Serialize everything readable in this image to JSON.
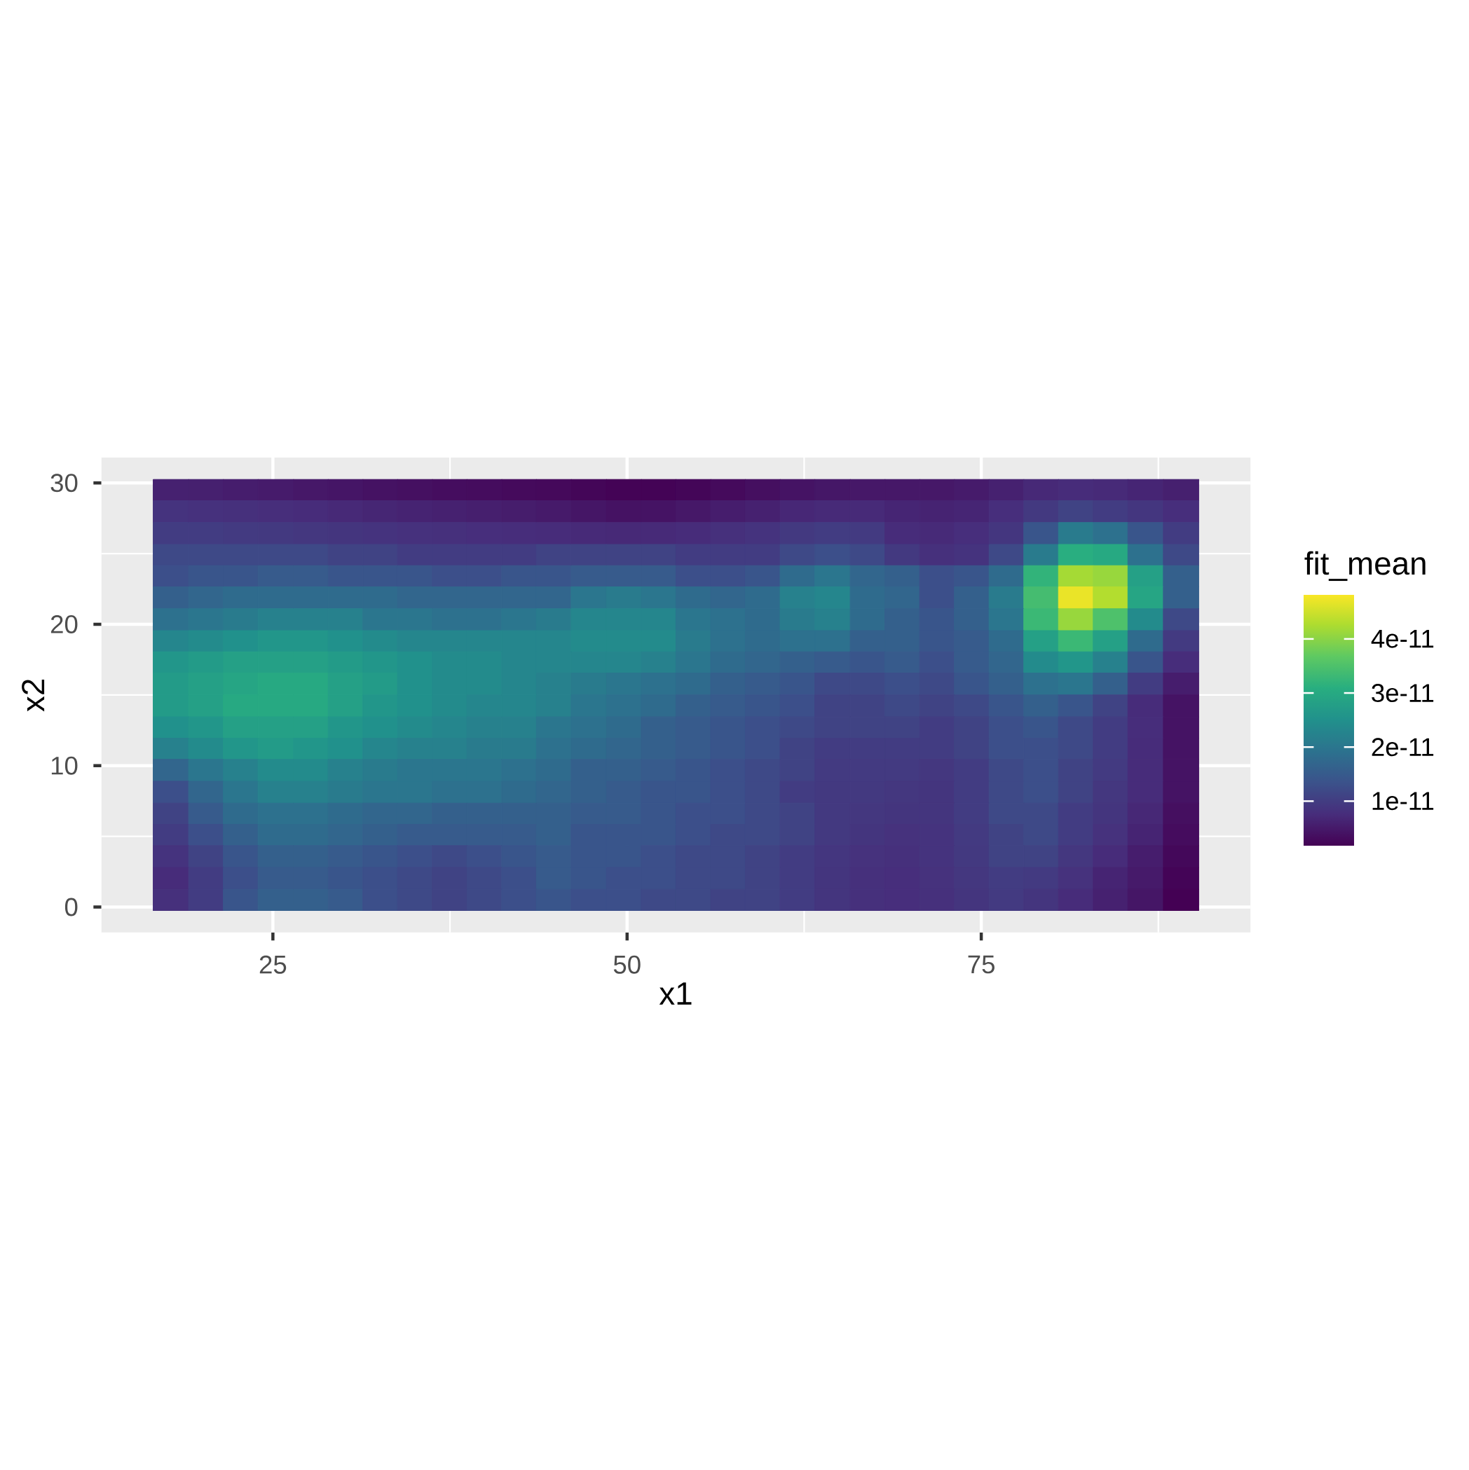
{
  "chart_data": {
    "type": "heatmap",
    "xlabel": "x1",
    "ylabel": "x2",
    "clabel": "fit_mean",
    "xlim": [
      12.9,
      94.0
    ],
    "ylim": [
      -1.8,
      31.8
    ],
    "xticks": [
      25,
      50,
      75
    ],
    "yticks": [
      0,
      10,
      20,
      30
    ],
    "grid": true,
    "clim": [
      1.75e-12,
      4.84e-11
    ],
    "cticks": [
      {
        "value": 1e-11,
        "label": "1e-11"
      },
      {
        "value": 2e-11,
        "label": "2e-11"
      },
      {
        "value": 3e-11,
        "label": "3e-11"
      },
      {
        "value": 4e-11,
        "label": "4e-11"
      }
    ],
    "x": [
      17.8,
      20.3,
      22.7,
      25.2,
      27.7,
      30.1,
      32.6,
      35.0,
      37.5,
      39.9,
      42.4,
      44.8,
      47.3,
      49.8,
      52.2,
      54.7,
      57.1,
      59.6,
      62.0,
      64.5,
      67.0,
      69.4,
      71.9,
      74.3,
      76.8,
      79.2,
      81.7,
      84.1,
      86.6,
      89.1
    ],
    "y": [
      29.5,
      28.0,
      26.4,
      24.9,
      23.4,
      21.9,
      20.3,
      18.8,
      17.3,
      15.8,
      14.2,
      12.7,
      11.2,
      9.7,
      8.1,
      6.6,
      5.1,
      3.6,
      2.0,
      0.5
    ],
    "cells": [
      [
        6e-12,
        5.8e-12,
        5.5e-12,
        5.2e-12,
        4.8e-12,
        4.4e-12,
        4e-12,
        3.7e-12,
        3.4e-12,
        3.2e-12,
        3e-12,
        2.8e-12,
        2.4e-12,
        2e-12,
        2e-12,
        2.4e-12,
        3e-12,
        3.6e-12,
        4.2e-12,
        4.6e-12,
        4.8e-12,
        4.8e-12,
        4.8e-12,
        5.2e-12,
        6e-12,
        7e-12,
        7.5e-12,
        7.2e-12,
        6.5e-12,
        5.8e-12
      ],
      [
        8.5e-12,
        8.2e-12,
        8e-12,
        7.7e-12,
        7.4e-12,
        7e-12,
        6.6e-12,
        6.2e-12,
        6e-12,
        5.7e-12,
        5.4e-12,
        5e-12,
        4.5e-12,
        4e-12,
        4.2e-12,
        4.8e-12,
        5.5e-12,
        6e-12,
        6.8e-12,
        7.2e-12,
        7.2e-12,
        6.5e-12,
        6.2e-12,
        6.5e-12,
        7.8e-12,
        9.5e-12,
        1.1e-11,
        1e-11,
        9e-12,
        7.8e-12
      ],
      [
        1e-11,
        1e-11,
        9.7e-12,
        9.5e-12,
        9.2e-12,
        8.8e-12,
        8.5e-12,
        8.2e-12,
        8e-12,
        7.8e-12,
        7.6e-12,
        7.4e-12,
        7.2e-12,
        7e-12,
        7.2e-12,
        7.5e-12,
        8e-12,
        8.5e-12,
        9.5e-12,
        1e-11,
        9.7e-12,
        7.5e-12,
        7.2e-12,
        7.8e-12,
        9e-12,
        1.4e-11,
        2.1e-11,
        1.9e-11,
        1.4e-11,
        1e-11
      ],
      [
        1.2e-11,
        1.2e-11,
        1.2e-11,
        1.2e-11,
        1.2e-11,
        1.1e-11,
        1.1e-11,
        1e-11,
        1e-11,
        1e-11,
        1e-11,
        1.1e-11,
        1.1e-11,
        1.1e-11,
        1.1e-11,
        1e-11,
        1e-11,
        1e-11,
        1.2e-11,
        1.3e-11,
        1.2e-11,
        9.5e-12,
        8e-12,
        8.5e-12,
        1.2e-11,
        2.1e-11,
        3.1e-11,
        3e-11,
        1.9e-11,
        1.2e-11
      ],
      [
        1.3e-11,
        1.4e-11,
        1.4e-11,
        1.5e-11,
        1.5e-11,
        1.4e-11,
        1.4e-11,
        1.4e-11,
        1.3e-11,
        1.3e-11,
        1.4e-11,
        1.4e-11,
        1.5e-11,
        1.5e-11,
        1.5e-11,
        1.3e-11,
        1.3e-11,
        1.4e-11,
        1.8e-11,
        2e-11,
        1.7e-11,
        1.6e-11,
        1.3e-11,
        1.4e-11,
        1.8e-11,
        3.2e-11,
        4.2e-11,
        4.1e-11,
        2.8e-11,
        1.6e-11
      ],
      [
        1.6e-11,
        1.7e-11,
        1.8e-11,
        1.8e-11,
        1.8e-11,
        1.8e-11,
        1.8e-11,
        1.7e-11,
        1.7e-11,
        1.7e-11,
        1.7e-11,
        1.7e-11,
        2e-11,
        2.1e-11,
        2e-11,
        1.8e-11,
        1.7e-11,
        1.8e-11,
        2.2e-11,
        2.3e-11,
        1.8e-11,
        1.7e-11,
        1.3e-11,
        1.6e-11,
        2.1e-11,
        3.4e-11,
        4.7e-11,
        4.3e-11,
        2.9e-11,
        1.6e-11
      ],
      [
        1.9e-11,
        2e-11,
        2.1e-11,
        2.2e-11,
        2.2e-11,
        2.2e-11,
        2e-11,
        2e-11,
        1.9e-11,
        1.9e-11,
        2e-11,
        2.1e-11,
        2.3e-11,
        2.3e-11,
        2.3e-11,
        2e-11,
        1.9e-11,
        1.8e-11,
        2.1e-11,
        2.2e-11,
        1.8e-11,
        1.6e-11,
        1.4e-11,
        1.6e-11,
        2e-11,
        3.3e-11,
        4.1e-11,
        3.5e-11,
        2.4e-11,
        1.2e-11
      ],
      [
        2.3e-11,
        2.4e-11,
        2.5e-11,
        2.6e-11,
        2.6e-11,
        2.5e-11,
        2.4e-11,
        2.3e-11,
        2.3e-11,
        2.3e-11,
        2.3e-11,
        2.3e-11,
        2.4e-11,
        2.4e-11,
        2.4e-11,
        2.1e-11,
        1.9e-11,
        1.8e-11,
        1.9e-11,
        1.9e-11,
        1.6e-11,
        1.6e-11,
        1.4e-11,
        1.5e-11,
        1.8e-11,
        2.8e-11,
        3.3e-11,
        2.8e-11,
        1.8e-11,
        9.7e-12
      ],
      [
        2.6e-11,
        2.7e-11,
        2.8e-11,
        2.8e-11,
        2.8e-11,
        2.7e-11,
        2.6e-11,
        2.5e-11,
        2.4e-11,
        2.4e-11,
        2.3e-11,
        2.3e-11,
        2.3e-11,
        2.3e-11,
        2.2e-11,
        2e-11,
        1.8e-11,
        1.7e-11,
        1.6e-11,
        1.5e-11,
        1.4e-11,
        1.5e-11,
        1.3e-11,
        1.5e-11,
        1.7e-11,
        2.4e-11,
        2.6e-11,
        2.2e-11,
        1.4e-11,
        7.6e-12
      ],
      [
        2.7e-11,
        2.8e-11,
        2.9e-11,
        3e-11,
        3e-11,
        2.8e-11,
        2.7e-11,
        2.5e-11,
        2.4e-11,
        2.4e-11,
        2.3e-11,
        2.2e-11,
        2.1e-11,
        2e-11,
        1.9e-11,
        1.8e-11,
        1.6e-11,
        1.5e-11,
        1.4e-11,
        1.2e-11,
        1.2e-11,
        1.3e-11,
        1.2e-11,
        1.4e-11,
        1.6e-11,
        1.9e-11,
        2e-11,
        1.6e-11,
        1e-11,
        5.5e-12
      ],
      [
        2.7e-11,
        2.8e-11,
        3e-11,
        3e-11,
        3e-11,
        2.8e-11,
        2.6e-11,
        2.5e-11,
        2.4e-11,
        2.3e-11,
        2.3e-11,
        2.2e-11,
        2e-11,
        1.9e-11,
        1.8e-11,
        1.6e-11,
        1.5e-11,
        1.4e-11,
        1.3e-11,
        1.1e-11,
        1.1e-11,
        1.2e-11,
        1.1e-11,
        1.2e-11,
        1.4e-11,
        1.6e-11,
        1.4e-11,
        1.1e-11,
        7.4e-12,
        4.1e-12
      ],
      [
        2.5e-11,
        2.6e-11,
        2.8e-11,
        2.8e-11,
        2.8e-11,
        2.6e-11,
        2.5e-11,
        2.4e-11,
        2.3e-11,
        2.2e-11,
        2.2e-11,
        2e-11,
        1.9e-11,
        1.8e-11,
        1.6e-11,
        1.5e-11,
        1.4e-11,
        1.3e-11,
        1.2e-11,
        1.1e-11,
        1.1e-11,
        1.1e-11,
        1e-11,
        1.1e-11,
        1.3e-11,
        1.4e-11,
        1.2e-11,
        1e-11,
        7.6e-12,
        4.1e-12
      ],
      [
        2.2e-11,
        2.4e-11,
        2.6e-11,
        2.7e-11,
        2.6e-11,
        2.5e-11,
        2.3e-11,
        2.2e-11,
        2.2e-11,
        2.1e-11,
        2.1e-11,
        1.9e-11,
        1.8e-11,
        1.7e-11,
        1.6e-11,
        1.5e-11,
        1.4e-11,
        1.3e-11,
        1.1e-11,
        1e-11,
        1e-11,
        1e-11,
        1e-11,
        1.1e-11,
        1.3e-11,
        1.3e-11,
        1.2e-11,
        1e-11,
        7.4e-12,
        4.1e-12
      ],
      [
        1.7e-11,
        2e-11,
        2.2e-11,
        2.4e-11,
        2.4e-11,
        2.2e-11,
        2.1e-11,
        2e-11,
        2e-11,
        2e-11,
        1.9e-11,
        1.8e-11,
        1.6e-11,
        1.6e-11,
        1.5e-11,
        1.4e-11,
        1.3e-11,
        1.2e-11,
        1.1e-11,
        9.7e-12,
        9.7e-12,
        9.7e-12,
        9.2e-12,
        1e-11,
        1.2e-11,
        1.3e-11,
        1.1e-11,
        9.7e-12,
        7.4e-12,
        4.1e-12
      ],
      [
        1.3e-11,
        1.7e-11,
        2e-11,
        2.2e-11,
        2.2e-11,
        2.1e-11,
        2e-11,
        2e-11,
        1.9e-11,
        1.9e-11,
        1.8e-11,
        1.7e-11,
        1.6e-11,
        1.5e-11,
        1.4e-11,
        1.4e-11,
        1.3e-11,
        1.2e-11,
        1e-11,
        9.5e-12,
        9.5e-12,
        9.2e-12,
        8.8e-12,
        1e-11,
        1.2e-11,
        1.3e-11,
        1.1e-11,
        9.2e-12,
        7.4e-12,
        4.1e-12
      ],
      [
        1.1e-11,
        1.5e-11,
        1.8e-11,
        1.9e-11,
        1.9e-11,
        1.8e-11,
        1.7e-11,
        1.7e-11,
        1.6e-11,
        1.6e-11,
        1.6e-11,
        1.6e-11,
        1.5e-11,
        1.5e-11,
        1.4e-11,
        1.3e-11,
        1.3e-11,
        1.2e-11,
        1.1e-11,
        9.5e-12,
        9.2e-12,
        8.8e-12,
        8.8e-12,
        1e-11,
        1.2e-11,
        1.2e-11,
        1e-11,
        8.8e-12,
        6.9e-12,
        3.6e-12
      ],
      [
        1e-11,
        1.3e-11,
        1.6e-11,
        1.8e-11,
        1.8e-11,
        1.7e-11,
        1.6e-11,
        1.5e-11,
        1.5e-11,
        1.5e-11,
        1.5e-11,
        1.6e-11,
        1.4e-11,
        1.4e-11,
        1.4e-11,
        1.3e-11,
        1.2e-11,
        1.2e-11,
        1.1e-11,
        9.5e-12,
        8.8e-12,
        8.3e-12,
        8.5e-12,
        9.7e-12,
        1.1e-11,
        1.2e-11,
        1e-11,
        8.3e-12,
        6.4e-12,
        3.2e-12
      ],
      [
        8.5e-12,
        1.1e-11,
        1.4e-11,
        1.6e-11,
        1.6e-11,
        1.5e-11,
        1.4e-11,
        1.3e-11,
        1.2e-11,
        1.3e-11,
        1.4e-11,
        1.5e-11,
        1.4e-11,
        1.4e-11,
        1.3e-11,
        1.2e-11,
        1.2e-11,
        1.1e-11,
        1e-11,
        9e-12,
        8.3e-12,
        8e-12,
        8.5e-12,
        9.5e-12,
        1.1e-11,
        1.1e-11,
        9.2e-12,
        7.4e-12,
        5.5e-12,
        2.7e-12
      ],
      [
        7.5e-12,
        1e-11,
        1.3e-11,
        1.5e-11,
        1.5e-11,
        1.4e-11,
        1.3e-11,
        1.2e-11,
        1.1e-11,
        1.2e-11,
        1.3e-11,
        1.5e-11,
        1.4e-11,
        1.3e-11,
        1.3e-11,
        1.2e-11,
        1.2e-11,
        1.1e-11,
        1e-11,
        8.8e-12,
        8e-12,
        7.8e-12,
        8.3e-12,
        9.2e-12,
        1e-11,
        9.7e-12,
        8.3e-12,
        6.4e-12,
        5e-12,
        2.2e-12
      ],
      [
        8e-12,
        1e-11,
        1.4e-11,
        1.6e-11,
        1.6e-11,
        1.5e-11,
        1.3e-11,
        1.2e-11,
        1.1e-11,
        1.2e-11,
        1.3e-11,
        1.4e-11,
        1.3e-11,
        1.3e-11,
        1.2e-11,
        1.2e-11,
        1.1e-11,
        1.1e-11,
        1e-11,
        8.8e-12,
        8e-12,
        7.8e-12,
        8e-12,
        8.8e-12,
        9.7e-12,
        8.8e-12,
        7.4e-12,
        6e-12,
        4.5e-12,
        1.8e-12
      ]
    ]
  }
}
